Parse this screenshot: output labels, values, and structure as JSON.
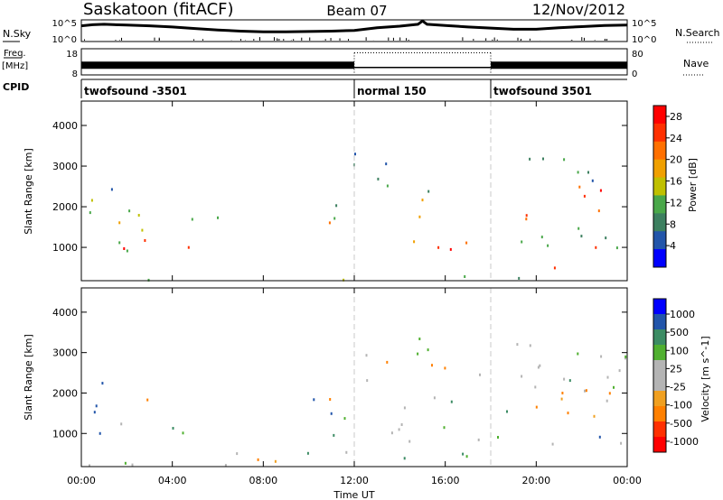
{
  "header": {
    "station": "Saskatoon (fitACF)",
    "beam": "Beam 07",
    "date": "12/Nov/2012"
  },
  "top_panels": {
    "nsky": {
      "label": "N.Sky",
      "ticks_left": [
        "10^5",
        "10^0"
      ],
      "ticks_right": [
        "10^5",
        "10^0"
      ],
      "right_label": "N.Search"
    },
    "freq": {
      "label_line1": "Freq.",
      "label_line2": "[MHz]",
      "ticks_left": [
        "18",
        "8"
      ],
      "ticks_right": [
        "80",
        "0"
      ],
      "right_label": "Nave"
    },
    "cpid": {
      "label": "CPID",
      "segments": [
        {
          "name": "twofsound -3501",
          "start_hour": 0
        },
        {
          "name": "normal 150",
          "start_hour": 12
        },
        {
          "name": "twofsound 3501",
          "start_hour": 18
        }
      ]
    }
  },
  "colors": {
    "power": [
      "#0000ff",
      "#2255aa",
      "#3d8060",
      "#4aa84a",
      "#c0c000",
      "#f0a000",
      "#ff7000",
      "#ff3000",
      "#ff0000"
    ],
    "velocity": [
      "#ff0000",
      "#ff3000",
      "#ff8000",
      "#f0a020",
      "#b4b4b4",
      "#b4b4b4",
      "#50b030",
      "#3c8c64",
      "#2255aa",
      "#0000ff"
    ],
    "ground": "#b4b4b4",
    "dashed_line": "#c8c8c8"
  },
  "chart_data": [
    {
      "type": "heatmap",
      "name": "Power",
      "xlabel": "",
      "ylabel": "Slant Range [km]",
      "xlim": [
        0,
        24
      ],
      "ylim": [
        180,
        4600
      ],
      "yticks": [
        "1000",
        "2000",
        "3000",
        "4000"
      ],
      "ytick_values": [
        1000,
        2000,
        3000,
        4000
      ],
      "colorbar": {
        "label": "Power [dB]",
        "ticks": [
          "4",
          "8",
          "12",
          "16",
          "20",
          "24",
          "28"
        ],
        "range": [
          0,
          30
        ]
      },
      "regions": [
        {
          "t0": 0.0,
          "t1": 2.5,
          "r0": 600,
          "r1": 2400,
          "value": 12
        },
        {
          "t0": 0.0,
          "t1": 1.5,
          "r0": 1700,
          "r1": 2600,
          "value": 10
        },
        {
          "t0": 0.5,
          "t1": 5.3,
          "r0": 800,
          "r1": 1350,
          "value": 27
        },
        {
          "t0": 1.0,
          "t1": 3.0,
          "r0": 1300,
          "r1": 2200,
          "value": 18
        },
        {
          "t0": 4.5,
          "t1": 6.0,
          "r0": 1200,
          "r1": 2400,
          "value": 8
        },
        {
          "t0": 8.8,
          "t1": 11.6,
          "r0": 1500,
          "r1": 2300,
          "value": 11
        },
        {
          "t0": 10.0,
          "t1": 11.5,
          "r0": 1600,
          "r1": 2000,
          "value": 20
        },
        {
          "t0": 11.0,
          "t1": 13.5,
          "r0": 2700,
          "r1": 3600,
          "value": 9
        },
        {
          "t0": 13.0,
          "t1": 14.7,
          "r0": 2400,
          "r1": 3500,
          "value": 10
        },
        {
          "t0": 14.0,
          "t1": 16.0,
          "r0": 1500,
          "r1": 2800,
          "value": 14
        },
        {
          "t0": 13.5,
          "t1": 24.0,
          "r0": 900,
          "r1": 1500,
          "value": 12
        },
        {
          "t0": 13.7,
          "t1": 24.0,
          "r0": 800,
          "r1": 1200,
          "value": 24
        },
        {
          "t0": 19.5,
          "t1": 23.5,
          "r0": 1400,
          "r1": 2700,
          "value": 22
        },
        {
          "t0": 18.5,
          "t1": 24.0,
          "r0": 2800,
          "r1": 3400,
          "value": 9
        },
        {
          "t0": 21.5,
          "t1": 24.0,
          "r0": 2500,
          "r1": 3200,
          "value": 8
        },
        {
          "t0": 0.0,
          "t1": 24.0,
          "r0": 200,
          "r1": 420,
          "value": 10
        },
        {
          "t0": 19.0,
          "t1": 21.5,
          "r0": 350,
          "r1": 600,
          "value": 28
        }
      ]
    },
    {
      "type": "heatmap",
      "name": "Velocity",
      "xlabel": "Time UT",
      "ylabel": "Slant Range [km]",
      "xlim": [
        0,
        24
      ],
      "ylim": [
        180,
        4600
      ],
      "xticks": [
        "00:00",
        "04:00",
        "08:00",
        "12:00",
        "16:00",
        "20:00",
        "00:00"
      ],
      "xtick_values": [
        0,
        4,
        8,
        12,
        16,
        20,
        24
      ],
      "yticks": [
        "1000",
        "2000",
        "3000",
        "4000"
      ],
      "ytick_values": [
        1000,
        2000,
        3000,
        4000
      ],
      "colorbar": {
        "label": "Velocity [m s^-1]",
        "ticks": [
          "1000",
          "500",
          "100",
          "25",
          "-25",
          "-100",
          "-500",
          "-1000"
        ],
        "tick_values": [
          1000,
          500,
          100,
          25,
          -25,
          -100,
          -500,
          -1000
        ]
      },
      "regions": [
        {
          "t0": 0.0,
          "t1": 2.5,
          "r0": 900,
          "r1": 2300,
          "value": 150
        },
        {
          "t0": 0.5,
          "t1": 5.3,
          "r0": 900,
          "r1": 1400,
          "value": 40
        },
        {
          "t0": 1.5,
          "t1": 3.5,
          "r0": 1700,
          "r1": 2300,
          "value": -150
        },
        {
          "t0": 8.8,
          "t1": 11.6,
          "r0": 1500,
          "r1": 2300,
          "value": 150
        },
        {
          "t0": 9.5,
          "t1": 11.5,
          "r0": 1500,
          "r1": 2100,
          "value": -150
        },
        {
          "t0": 11.0,
          "t1": 24.0,
          "r0": 700,
          "r1": 3500,
          "value": 0
        },
        {
          "t0": 13.0,
          "t1": 16.0,
          "r0": 2000,
          "r1": 3000,
          "value": -200
        },
        {
          "t0": 19.5,
          "t1": 23.5,
          "r0": 1500,
          "r1": 2700,
          "value": -250
        },
        {
          "t0": 22.0,
          "t1": 24.0,
          "r0": 700,
          "r1": 1800,
          "value": 300
        },
        {
          "t0": 0.0,
          "t1": 24.0,
          "r0": 180,
          "r1": 600,
          "value": 60
        },
        {
          "t0": 6.0,
          "t1": 14.0,
          "r0": 180,
          "r1": 600,
          "value": -80
        }
      ]
    },
    {
      "type": "line",
      "name": "N.Sky",
      "note_units": "log10 scale",
      "x": [
        0,
        0.5,
        1,
        2,
        3,
        4,
        5,
        6,
        7,
        8,
        9,
        10,
        11,
        12,
        13,
        14,
        14.8,
        15,
        15.2,
        16,
        17,
        18,
        19,
        20,
        21,
        22,
        23,
        24
      ],
      "y": [
        3.9,
        4.2,
        4.3,
        4.1,
        3.9,
        3.6,
        3.2,
        2.8,
        2.5,
        2.3,
        2.3,
        2.4,
        2.5,
        2.7,
        3.4,
        3.8,
        4.3,
        5.2,
        4.3,
        4.0,
        3.6,
        3.3,
        3.0,
        3.0,
        3.4,
        3.7,
        4.0,
        4.1
      ],
      "ylim": [
        0,
        5
      ]
    },
    {
      "type": "line",
      "name": "Freq.",
      "units": "MHz",
      "segments": [
        {
          "t0": 0,
          "t1": 12,
          "value": 11.5,
          "style": "band"
        },
        {
          "t0": 12,
          "t1": 18,
          "value": 10.5,
          "style": "solid"
        },
        {
          "t0": 12,
          "t1": 18,
          "value": 17.0,
          "style": "dotted"
        },
        {
          "t0": 18,
          "t1": 24,
          "value": 11.5,
          "style": "band"
        }
      ],
      "ylim": [
        8,
        18
      ]
    }
  ]
}
